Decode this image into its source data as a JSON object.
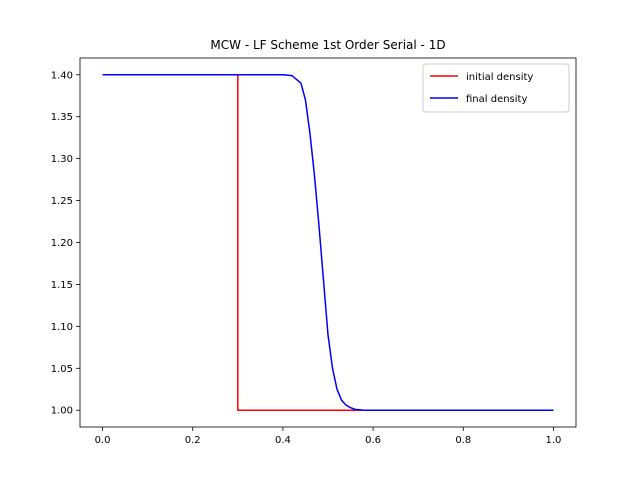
{
  "chart_data": {
    "type": "line",
    "title": "MCW - LF Scheme 1st Order Serial - 1D",
    "xlabel": "",
    "ylabel": "",
    "xlim": [
      -0.05,
      1.05
    ],
    "ylim": [
      0.98,
      1.42
    ],
    "xticks": [
      0.0,
      0.2,
      0.4,
      0.6,
      0.8,
      1.0
    ],
    "xtick_labels": [
      "0.0",
      "0.2",
      "0.4",
      "0.6",
      "0.8",
      "1.0"
    ],
    "yticks": [
      1.0,
      1.05,
      1.1,
      1.15,
      1.2,
      1.25,
      1.3,
      1.35,
      1.4
    ],
    "ytick_labels": [
      "1.00",
      "1.05",
      "1.10",
      "1.15",
      "1.20",
      "1.25",
      "1.30",
      "1.35",
      "1.40"
    ],
    "grid": false,
    "legend_position": "top-right",
    "series": [
      {
        "name": "initial density",
        "color": "#ff0000",
        "x": [
          0.0,
          0.3,
          0.3,
          1.0
        ],
        "y": [
          1.4,
          1.4,
          1.0,
          1.0
        ]
      },
      {
        "name": "final density",
        "color": "#0000ff",
        "x": [
          0.0,
          0.4,
          0.42,
          0.44,
          0.45,
          0.46,
          0.47,
          0.48,
          0.49,
          0.5,
          0.51,
          0.52,
          0.53,
          0.54,
          0.55,
          0.56,
          0.58,
          0.6,
          1.0
        ],
        "y": [
          1.4,
          1.4,
          1.399,
          1.39,
          1.37,
          1.33,
          1.28,
          1.22,
          1.155,
          1.09,
          1.05,
          1.025,
          1.012,
          1.006,
          1.003,
          1.001,
          1.0,
          1.0,
          1.0
        ]
      }
    ]
  }
}
